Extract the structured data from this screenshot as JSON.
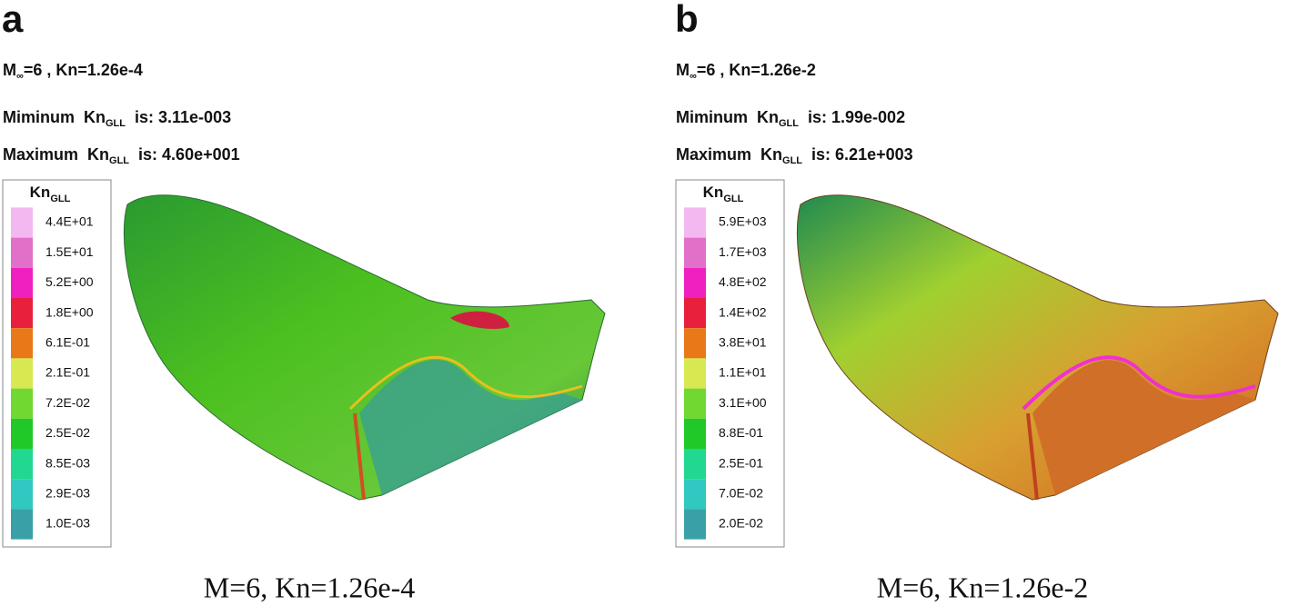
{
  "panels": [
    {
      "label": "a",
      "header": {
        "m": "M",
        "sub": "∞",
        "rest": "=6 , Kn=1.26e-4"
      },
      "minimum": {
        "prefix": "Miminum  Kn",
        "sub": "GLL",
        "rest": "  is: 3.11e-003"
      },
      "maximum": {
        "prefix": "Maximum  Kn",
        "sub": "GLL",
        "rest": "  is: 4.60e+001"
      },
      "legend": {
        "title": "Kn",
        "sub": "GLL",
        "levels": [
          "4.4E+01",
          "1.5E+01",
          "5.2E+00",
          "1.8E+00",
          "6.1E-01",
          "2.1E-01",
          "7.2E-02",
          "2.5E-02",
          "8.5E-03",
          "2.9E-03",
          "1.0E-03"
        ]
      },
      "caption": "M=6, Kn=1.26e-4"
    },
    {
      "label": "b",
      "header": {
        "m": "M",
        "sub": "∞",
        "rest": "=6 , Kn=1.26e-2"
      },
      "minimum": {
        "prefix": "Miminum  Kn",
        "sub": "GLL",
        "rest": "  is: 1.99e-002"
      },
      "maximum": {
        "prefix": "Maximum  Kn",
        "sub": "GLL",
        "rest": "  is: 6.21e+003"
      },
      "legend": {
        "title": "Kn",
        "sub": "GLL",
        "levels": [
          "5.9E+03",
          "1.7E+03",
          "4.8E+02",
          "1.4E+02",
          "3.8E+01",
          "1.1E+01",
          "3.1E+00",
          "8.8E-01",
          "2.5E-01",
          "7.0E-02",
          "2.0E-02"
        ]
      },
      "caption": "M=6, Kn=1.26e-2"
    }
  ],
  "colormap": [
    "#f4b8f0",
    "#e070c8",
    "#f020c0",
    "#e8203c",
    "#e87818",
    "#d8e850",
    "#70d830",
    "#20c828",
    "#20d890",
    "#30c8c0",
    "#3aa0a8"
  ]
}
